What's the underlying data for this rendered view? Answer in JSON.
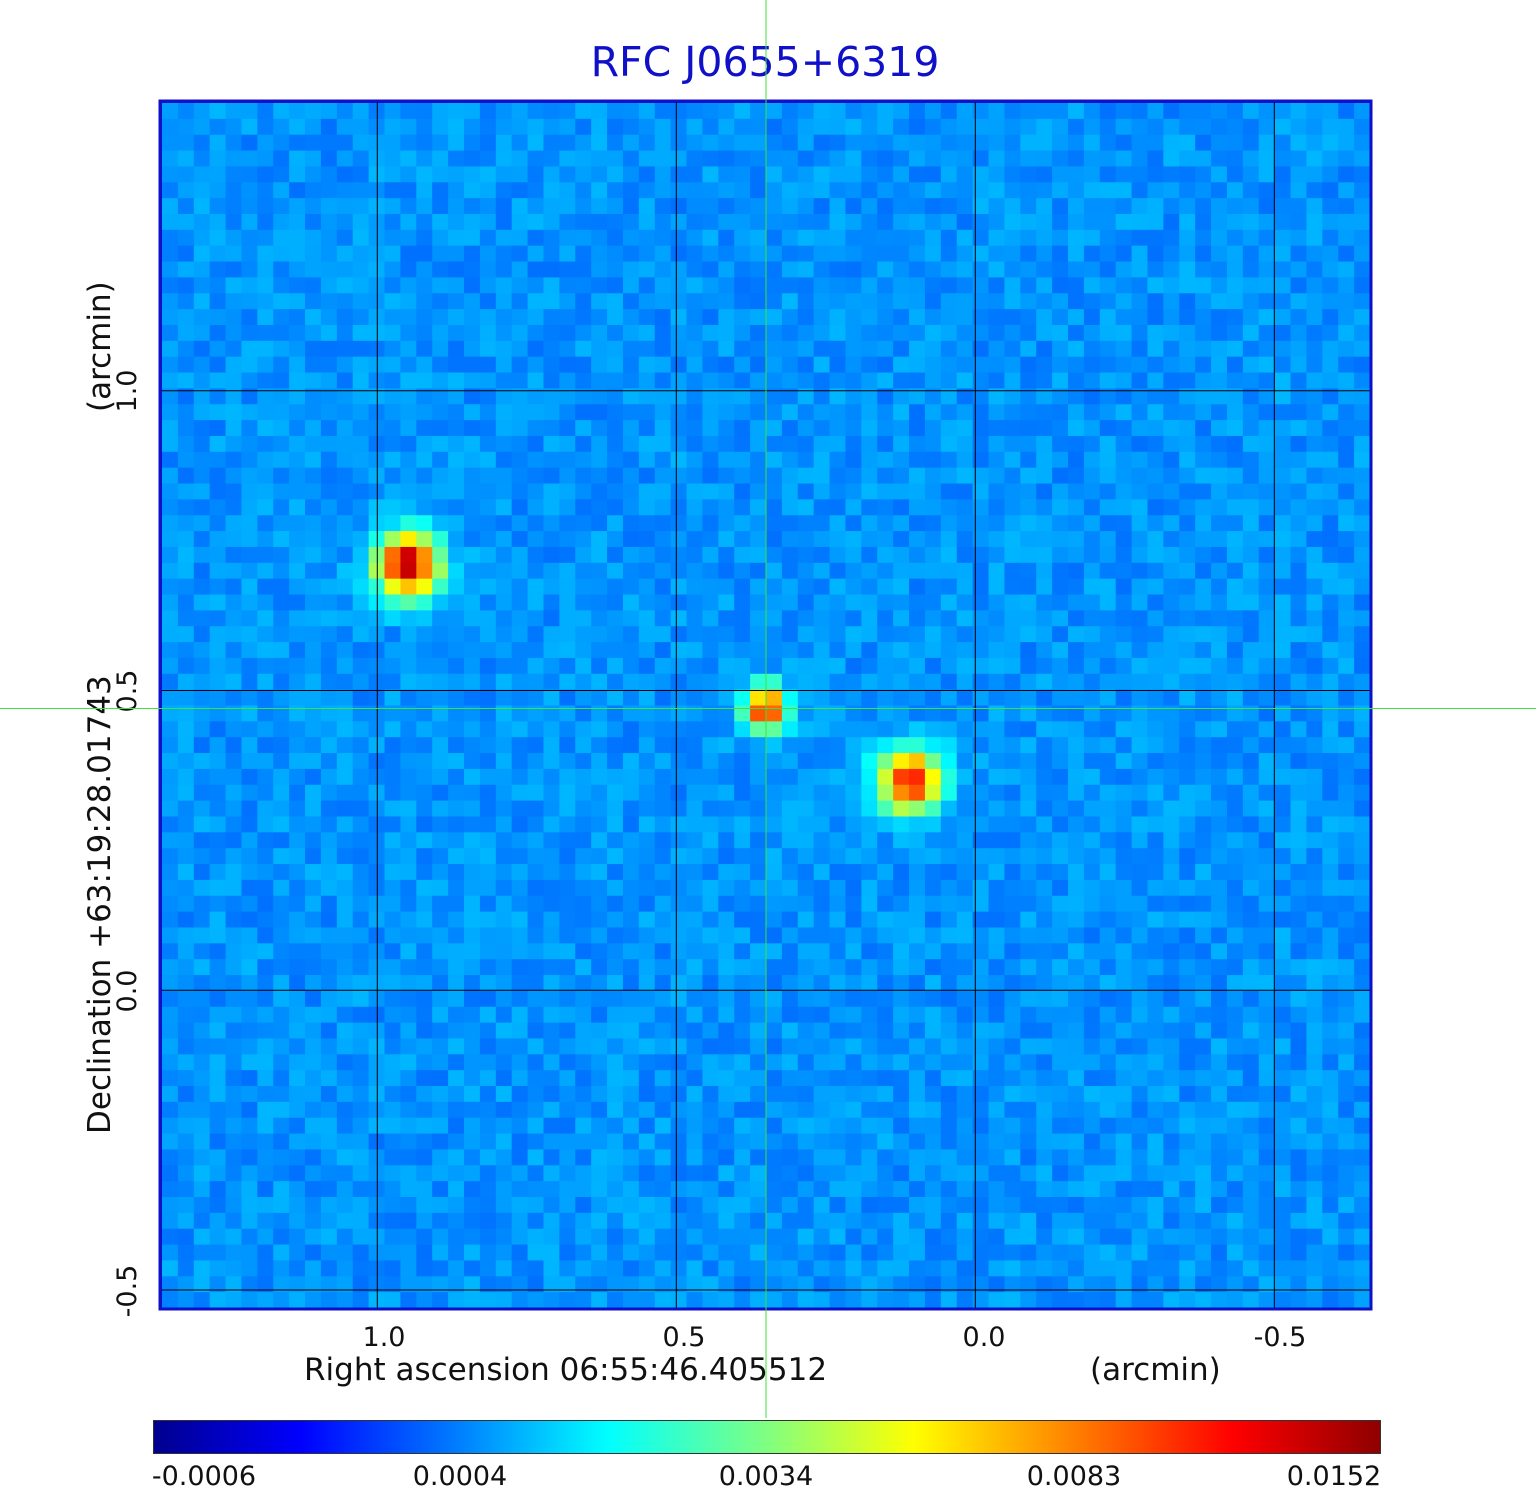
{
  "chart_data": {
    "type": "heatmap",
    "title": "RFC J0655+6319",
    "xlabel": "Right ascension  06:55:46.405512",
    "xunit": "(arcmin)",
    "ylabel": "Declination  +63:19:28.01743",
    "yunit": "(arcmin)",
    "xlim": [
      1.36,
      -0.66
    ],
    "ylim": [
      -0.53,
      1.48
    ],
    "x_ticks": [
      "1.0",
      "0.5",
      "0.0",
      "-0.5"
    ],
    "x_tick_values": [
      1.0,
      0.5,
      0.0,
      -0.5
    ],
    "y_ticks": [
      "1.0",
      "0.5",
      "0.0",
      "-0.5"
    ],
    "y_tick_values": [
      1.0,
      0.5,
      0.0,
      -0.5
    ],
    "grid": true,
    "colormap": "jet",
    "colorbar_ticks": [
      "-0.0006",
      "0.0004",
      "0.0034",
      "0.0083",
      "0.0152"
    ],
    "sources": [
      {
        "x": 0.95,
        "y": 0.71,
        "peak": 0.0152
      },
      {
        "x": 0.35,
        "y": 0.47,
        "peak": 0.012
      },
      {
        "x": 0.11,
        "y": 0.35,
        "peak": 0.0105
      }
    ],
    "crosshair": {
      "x": 0.35,
      "y": 0.47
    }
  },
  "colors": {
    "title": "#1010c8",
    "frame": "#1010c8",
    "crosshair": "#40e040",
    "grid": "#000000"
  }
}
